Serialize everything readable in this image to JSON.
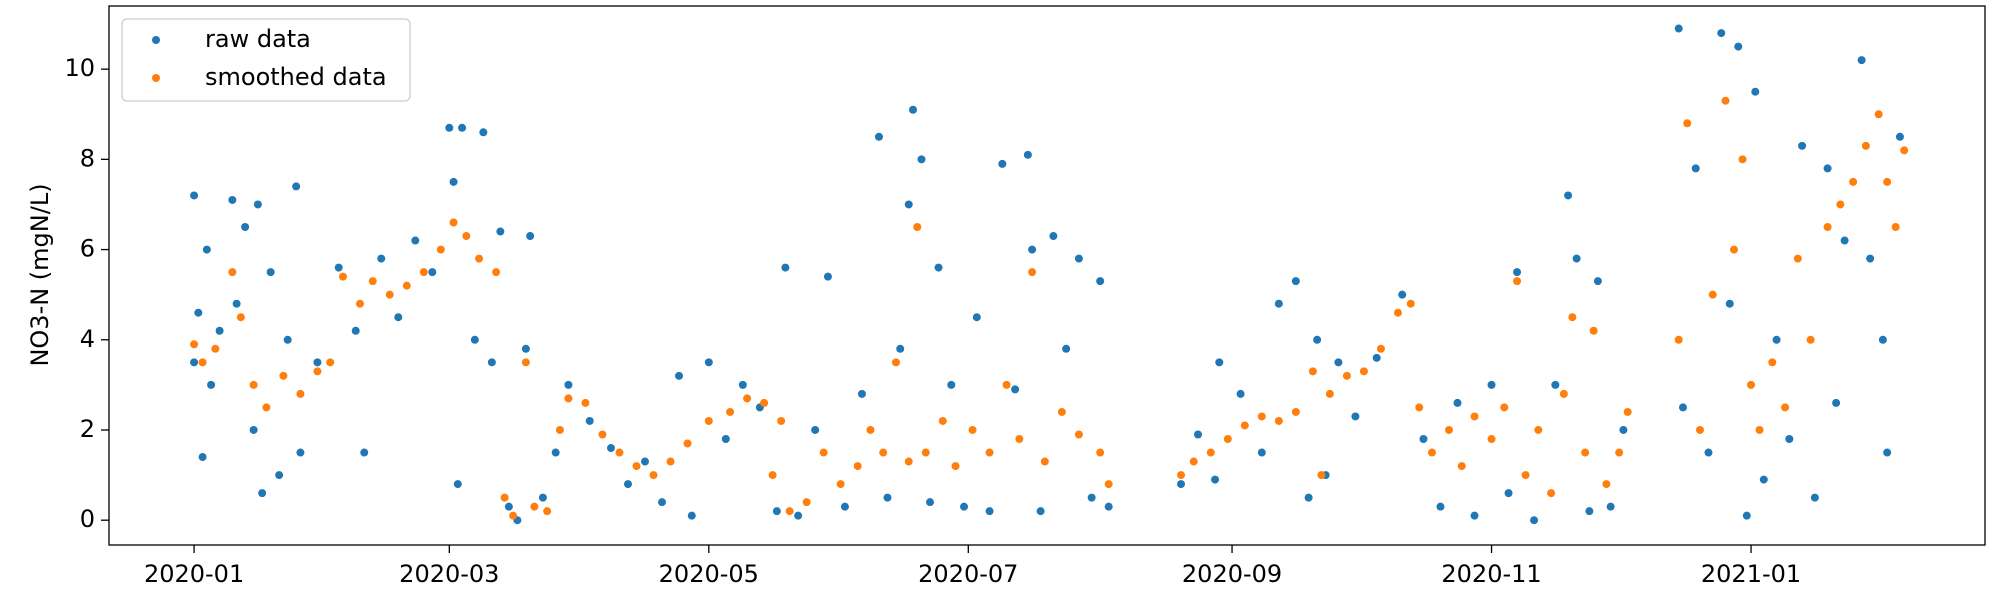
{
  "chart_data": {
    "type": "scatter",
    "y_label": "NO3-N (mgN/L)",
    "xlim": [
      "2019-12-12",
      "2021-02-25"
    ],
    "xticks": [
      "2020-01",
      "2020-03",
      "2020-05",
      "2020-07",
      "2020-09",
      "2020-11",
      "2021-01"
    ],
    "ylim": [
      -0.55,
      11.4
    ],
    "yticks": [
      0,
      2,
      4,
      6,
      8,
      10
    ],
    "grid": false,
    "legend": "upper left",
    "series": [
      {
        "name": "raw data",
        "color": "#1f77b4",
        "x": [
          "2020-01-01",
          "2020-01-01",
          "2020-01-02",
          "2020-01-03",
          "2020-01-04",
          "2020-01-05",
          "2020-01-07",
          "2020-01-10",
          "2020-01-11",
          "2020-01-13",
          "2020-01-15",
          "2020-01-16",
          "2020-01-17",
          "2020-01-19",
          "2020-01-21",
          "2020-01-23",
          "2020-01-25",
          "2020-01-26",
          "2020-01-30",
          "2020-02-04",
          "2020-02-08",
          "2020-02-10",
          "2020-02-14",
          "2020-02-18",
          "2020-02-22",
          "2020-02-26",
          "2020-03-01",
          "2020-03-02",
          "2020-03-03",
          "2020-03-04",
          "2020-03-07",
          "2020-03-09",
          "2020-03-11",
          "2020-03-13",
          "2020-03-15",
          "2020-03-17",
          "2020-03-19",
          "2020-03-20",
          "2020-03-23",
          "2020-03-26",
          "2020-03-29",
          "2020-04-03",
          "2020-04-08",
          "2020-04-12",
          "2020-04-16",
          "2020-04-20",
          "2020-04-24",
          "2020-04-27",
          "2020-05-01",
          "2020-05-05",
          "2020-05-09",
          "2020-05-13",
          "2020-05-17",
          "2020-05-19",
          "2020-05-22",
          "2020-05-26",
          "2020-05-29",
          "2020-06-02",
          "2020-06-06",
          "2020-06-10",
          "2020-06-12",
          "2020-06-15",
          "2020-06-17",
          "2020-06-18",
          "2020-06-20",
          "2020-06-22",
          "2020-06-24",
          "2020-06-27",
          "2020-06-30",
          "2020-07-03",
          "2020-07-06",
          "2020-07-09",
          "2020-07-12",
          "2020-07-15",
          "2020-07-16",
          "2020-07-18",
          "2020-07-21",
          "2020-07-24",
          "2020-07-27",
          "2020-07-30",
          "2020-08-01",
          "2020-08-03",
          "2020-08-20",
          "2020-08-24",
          "2020-08-28",
          "2020-08-29",
          "2020-09-03",
          "2020-09-08",
          "2020-09-12",
          "2020-09-16",
          "2020-09-19",
          "2020-09-21",
          "2020-09-23",
          "2020-09-26",
          "2020-09-30",
          "2020-10-05",
          "2020-10-11",
          "2020-10-16",
          "2020-10-20",
          "2020-10-24",
          "2020-10-28",
          "2020-11-01",
          "2020-11-05",
          "2020-11-07",
          "2020-11-11",
          "2020-11-16",
          "2020-11-19",
          "2020-11-21",
          "2020-11-24",
          "2020-11-26",
          "2020-11-29",
          "2020-12-02",
          "2020-12-15",
          "2020-12-16",
          "2020-12-19",
          "2020-12-22",
          "2020-12-25",
          "2020-12-27",
          "2020-12-29",
          "2020-12-31",
          "2021-01-02",
          "2021-01-04",
          "2021-01-07",
          "2021-01-10",
          "2021-01-13",
          "2021-01-16",
          "2021-01-19",
          "2021-01-21",
          "2021-01-23",
          "2021-01-27",
          "2021-01-29",
          "2021-02-01",
          "2021-02-02",
          "2021-02-05"
        ],
        "values": [
          7.2,
          3.5,
          4.6,
          1.4,
          6.0,
          3.0,
          4.2,
          7.1,
          4.8,
          6.5,
          2.0,
          7.0,
          0.6,
          5.5,
          1.0,
          4.0,
          7.4,
          1.5,
          3.5,
          5.6,
          4.2,
          1.5,
          5.8,
          4.5,
          6.2,
          5.5,
          8.7,
          7.5,
          0.8,
          8.7,
          4.0,
          8.6,
          3.5,
          6.4,
          0.3,
          0.0,
          3.8,
          6.3,
          0.5,
          1.5,
          3.0,
          2.2,
          1.6,
          0.8,
          1.3,
          0.4,
          3.2,
          0.1,
          3.5,
          1.8,
          3.0,
          2.5,
          0.2,
          5.6,
          0.1,
          2.0,
          5.4,
          0.3,
          2.8,
          8.5,
          0.5,
          3.8,
          7.0,
          9.1,
          8.0,
          0.4,
          5.6,
          3.0,
          0.3,
          4.5,
          0.2,
          7.9,
          2.9,
          8.1,
          6.0,
          0.2,
          6.3,
          3.8,
          5.8,
          0.5,
          5.3,
          0.3,
          0.8,
          1.9,
          0.9,
          3.5,
          2.8,
          1.5,
          4.8,
          5.3,
          0.5,
          4.0,
          1.0,
          3.5,
          2.3,
          3.6,
          5.0,
          1.8,
          0.3,
          2.6,
          0.1,
          3.0,
          0.6,
          5.5,
          0.0,
          3.0,
          7.2,
          5.8,
          0.2,
          5.3,
          0.3,
          2.0,
          10.9,
          2.5,
          7.8,
          1.5,
          10.8,
          4.8,
          10.5,
          0.1,
          9.5,
          0.9,
          4.0,
          1.8,
          8.3,
          0.5,
          7.8,
          2.6,
          6.2,
          10.2,
          5.8,
          4.0,
          1.5,
          8.5
        ]
      },
      {
        "name": "smoothed data",
        "color": "#ff7f0e",
        "x": [
          "2020-01-01",
          "2020-01-03",
          "2020-01-06",
          "2020-01-10",
          "2020-01-12",
          "2020-01-15",
          "2020-01-18",
          "2020-01-22",
          "2020-01-26",
          "2020-01-30",
          "2020-02-02",
          "2020-02-05",
          "2020-02-09",
          "2020-02-12",
          "2020-02-16",
          "2020-02-20",
          "2020-02-24",
          "2020-02-28",
          "2020-03-02",
          "2020-03-05",
          "2020-03-08",
          "2020-03-12",
          "2020-03-14",
          "2020-03-16",
          "2020-03-19",
          "2020-03-21",
          "2020-03-24",
          "2020-03-27",
          "2020-03-29",
          "2020-04-02",
          "2020-04-06",
          "2020-04-10",
          "2020-04-14",
          "2020-04-18",
          "2020-04-22",
          "2020-04-26",
          "2020-05-01",
          "2020-05-06",
          "2020-05-10",
          "2020-05-14",
          "2020-05-16",
          "2020-05-18",
          "2020-05-20",
          "2020-05-24",
          "2020-05-28",
          "2020-06-01",
          "2020-06-05",
          "2020-06-08",
          "2020-06-11",
          "2020-06-14",
          "2020-06-17",
          "2020-06-19",
          "2020-06-21",
          "2020-06-25",
          "2020-06-28",
          "2020-07-02",
          "2020-07-06",
          "2020-07-10",
          "2020-07-13",
          "2020-07-16",
          "2020-07-19",
          "2020-07-23",
          "2020-07-27",
          "2020-08-01",
          "2020-08-03",
          "2020-08-20",
          "2020-08-23",
          "2020-08-27",
          "2020-08-31",
          "2020-09-04",
          "2020-09-08",
          "2020-09-12",
          "2020-09-16",
          "2020-09-20",
          "2020-09-22",
          "2020-09-24",
          "2020-09-28",
          "2020-10-02",
          "2020-10-06",
          "2020-10-10",
          "2020-10-13",
          "2020-10-15",
          "2020-10-18",
          "2020-10-22",
          "2020-10-25",
          "2020-10-28",
          "2020-11-01",
          "2020-11-04",
          "2020-11-07",
          "2020-11-09",
          "2020-11-12",
          "2020-11-15",
          "2020-11-18",
          "2020-11-20",
          "2020-11-23",
          "2020-11-25",
          "2020-11-28",
          "2020-12-01",
          "2020-12-03",
          "2020-12-15",
          "2020-12-17",
          "2020-12-20",
          "2020-12-23",
          "2020-12-26",
          "2020-12-28",
          "2020-12-30",
          "2021-01-01",
          "2021-01-03",
          "2021-01-06",
          "2021-01-09",
          "2021-01-12",
          "2021-01-15",
          "2021-01-19",
          "2021-01-22",
          "2021-01-25",
          "2021-01-28",
          "2021-01-31",
          "2021-02-02",
          "2021-02-04",
          "2021-02-06"
        ],
        "values": [
          3.9,
          3.5,
          3.8,
          5.5,
          4.5,
          3.0,
          2.5,
          3.2,
          2.8,
          3.3,
          3.5,
          5.4,
          4.8,
          5.3,
          5.0,
          5.2,
          5.5,
          6.0,
          6.6,
          6.3,
          5.8,
          5.5,
          0.5,
          0.1,
          3.5,
          0.3,
          0.2,
          2.0,
          2.7,
          2.6,
          1.9,
          1.5,
          1.2,
          1.0,
          1.3,
          1.7,
          2.2,
          2.4,
          2.7,
          2.6,
          1.0,
          2.2,
          0.2,
          0.4,
          1.5,
          0.8,
          1.2,
          2.0,
          1.5,
          3.5,
          1.3,
          6.5,
          1.5,
          2.2,
          1.2,
          2.0,
          1.5,
          3.0,
          1.8,
          5.5,
          1.3,
          2.4,
          1.9,
          1.5,
          0.8,
          1.0,
          1.3,
          1.5,
          1.8,
          2.1,
          2.3,
          2.2,
          2.4,
          3.3,
          1.0,
          2.8,
          3.2,
          3.3,
          3.8,
          4.6,
          4.8,
          2.5,
          1.5,
          2.0,
          1.2,
          2.3,
          1.8,
          2.5,
          5.3,
          1.0,
          2.0,
          0.6,
          2.8,
          4.5,
          1.5,
          4.2,
          0.8,
          1.5,
          2.4,
          4.0,
          8.8,
          2.0,
          5.0,
          9.3,
          6.0,
          8.0,
          3.0,
          2.0,
          3.5,
          2.5,
          5.8,
          4.0,
          6.5,
          7.0,
          7.5,
          8.3,
          9.0,
          7.5,
          6.5,
          8.2
        ]
      }
    ]
  }
}
